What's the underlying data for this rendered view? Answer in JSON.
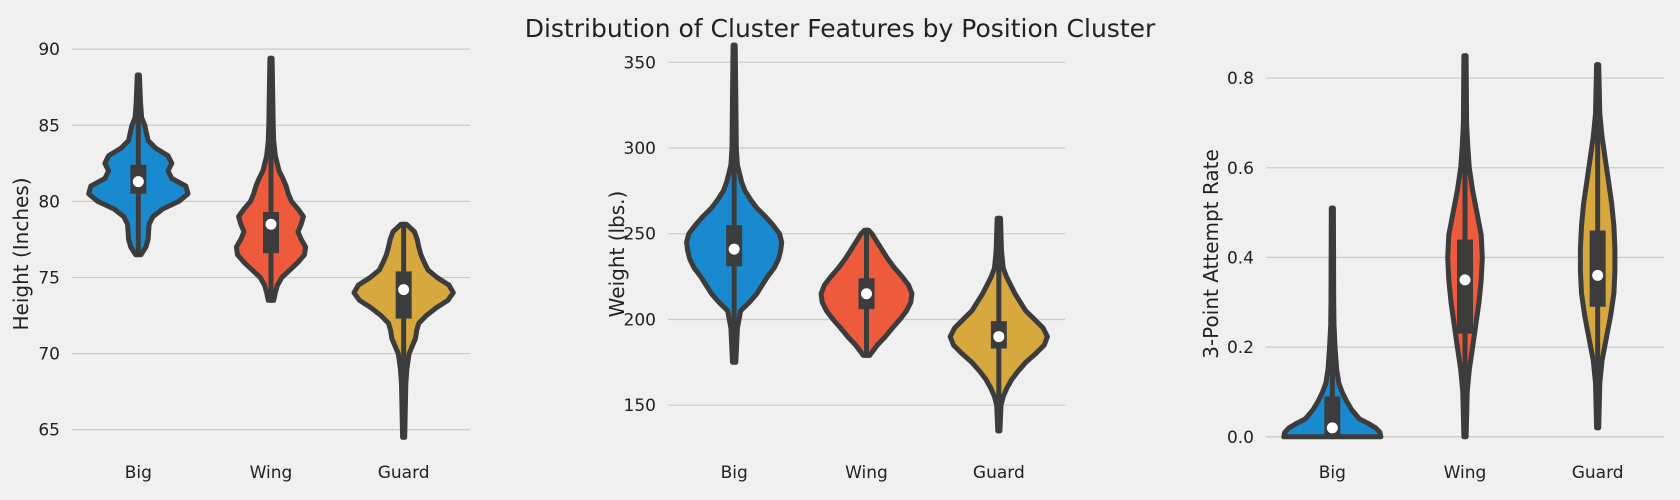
{
  "figure": {
    "title": "Distribution of Cluster Features by Position Cluster",
    "colors": {
      "background": "#f0f0f0",
      "grid": "#cbcbcb",
      "outline": "#3c3c3c",
      "Big": "#1a8ad0",
      "Wing": "#ee5a3c",
      "Guard": "#d7a83e"
    }
  },
  "chart_data": [
    {
      "type": "violin",
      "title": "",
      "xlabel": "",
      "ylabel": "Height (Inches)",
      "categories": [
        "Big",
        "Wing",
        "Guard"
      ],
      "yticks": [
        65,
        70,
        75,
        80,
        85,
        90
      ],
      "ylim": [
        63.8,
        90.6
      ],
      "grid": true,
      "series": [
        {
          "category": "Big",
          "min": 76.5,
          "max": 88.3,
          "q1": 80.5,
          "median": 81.3,
          "q3": 82.4,
          "density": [
            [
              76.5,
              0.05
            ],
            [
              77.0,
              0.14
            ],
            [
              77.5,
              0.18
            ],
            [
              78.0,
              0.19
            ],
            [
              78.5,
              0.2
            ],
            [
              79.0,
              0.27
            ],
            [
              79.5,
              0.45
            ],
            [
              80.0,
              0.75
            ],
            [
              80.5,
              0.92
            ],
            [
              81.0,
              0.88
            ],
            [
              81.5,
              0.62
            ],
            [
              82.0,
              0.55
            ],
            [
              82.5,
              0.62
            ],
            [
              83.0,
              0.55
            ],
            [
              83.5,
              0.32
            ],
            [
              84.0,
              0.18
            ],
            [
              84.5,
              0.15
            ],
            [
              85.0,
              0.12
            ],
            [
              85.5,
              0.06
            ],
            [
              86.5,
              0.04
            ],
            [
              88.3,
              0.02
            ]
          ]
        },
        {
          "category": "Wing",
          "min": 73.5,
          "max": 89.4,
          "q1": 76.6,
          "median": 78.5,
          "q3": 79.3,
          "density": [
            [
              73.5,
              0.05
            ],
            [
              74.0,
              0.08
            ],
            [
              74.5,
              0.12
            ],
            [
              75.0,
              0.2
            ],
            [
              75.5,
              0.35
            ],
            [
              76.0,
              0.5
            ],
            [
              76.5,
              0.62
            ],
            [
              77.0,
              0.64
            ],
            [
              77.5,
              0.56
            ],
            [
              78.0,
              0.5
            ],
            [
              78.5,
              0.56
            ],
            [
              79.0,
              0.6
            ],
            [
              79.5,
              0.5
            ],
            [
              80.0,
              0.38
            ],
            [
              80.5,
              0.32
            ],
            [
              81.0,
              0.28
            ],
            [
              81.5,
              0.22
            ],
            [
              82.0,
              0.15
            ],
            [
              83.0,
              0.08
            ],
            [
              84.0,
              0.05
            ],
            [
              85.0,
              0.04
            ],
            [
              89.4,
              0.02
            ]
          ]
        },
        {
          "category": "Guard",
          "min": 64.5,
          "max": 78.5,
          "q1": 72.3,
          "median": 74.2,
          "q3": 75.4,
          "density": [
            [
              64.5,
              0.02
            ],
            [
              68.0,
              0.04
            ],
            [
              69.0,
              0.06
            ],
            [
              70.0,
              0.1
            ],
            [
              70.5,
              0.16
            ],
            [
              71.0,
              0.22
            ],
            [
              71.5,
              0.24
            ],
            [
              72.0,
              0.28
            ],
            [
              72.5,
              0.42
            ],
            [
              73.0,
              0.6
            ],
            [
              73.5,
              0.82
            ],
            [
              74.0,
              0.92
            ],
            [
              74.5,
              0.84
            ],
            [
              75.0,
              0.62
            ],
            [
              75.5,
              0.45
            ],
            [
              76.0,
              0.38
            ],
            [
              76.5,
              0.32
            ],
            [
              77.0,
              0.28
            ],
            [
              77.5,
              0.25
            ],
            [
              78.0,
              0.2
            ],
            [
              78.5,
              0.05
            ]
          ]
        }
      ]
    },
    {
      "type": "violin",
      "title": "",
      "xlabel": "",
      "ylabel": "Weight (lbs.)",
      "categories": [
        "Big",
        "Wing",
        "Guard"
      ],
      "yticks": [
        150,
        200,
        250,
        300,
        350
      ],
      "ylim": [
        125,
        363
      ],
      "grid": true,
      "series": [
        {
          "category": "Big",
          "min": 175,
          "max": 360,
          "q1": 231,
          "median": 241,
          "q3": 255,
          "density": [
            [
              175,
              0.03
            ],
            [
              195,
              0.06
            ],
            [
              205,
              0.12
            ],
            [
              210,
              0.28
            ],
            [
              215,
              0.42
            ],
            [
              220,
              0.52
            ],
            [
              225,
              0.62
            ],
            [
              230,
              0.74
            ],
            [
              235,
              0.82
            ],
            [
              240,
              0.86
            ],
            [
              245,
              0.88
            ],
            [
              250,
              0.84
            ],
            [
              255,
              0.72
            ],
            [
              260,
              0.58
            ],
            [
              265,
              0.42
            ],
            [
              270,
              0.3
            ],
            [
              275,
              0.2
            ],
            [
              280,
              0.14
            ],
            [
              285,
              0.1
            ],
            [
              290,
              0.06
            ],
            [
              300,
              0.04
            ],
            [
              330,
              0.03
            ],
            [
              360,
              0.02
            ]
          ]
        },
        {
          "category": "Wing",
          "min": 179,
          "max": 252,
          "q1": 206,
          "median": 215,
          "q3": 224,
          "density": [
            [
              179,
              0.06
            ],
            [
              185,
              0.2
            ],
            [
              190,
              0.35
            ],
            [
              195,
              0.48
            ],
            [
              200,
              0.62
            ],
            [
              205,
              0.74
            ],
            [
              210,
              0.82
            ],
            [
              215,
              0.84
            ],
            [
              220,
              0.78
            ],
            [
              225,
              0.66
            ],
            [
              230,
              0.52
            ],
            [
              235,
              0.4
            ],
            [
              240,
              0.3
            ],
            [
              245,
              0.2
            ],
            [
              250,
              0.1
            ],
            [
              252,
              0.04
            ]
          ]
        },
        {
          "category": "Guard",
          "min": 135,
          "max": 259,
          "q1": 183,
          "median": 190,
          "q3": 199,
          "density": [
            [
              135,
              0.02
            ],
            [
              150,
              0.04
            ],
            [
              155,
              0.08
            ],
            [
              160,
              0.15
            ],
            [
              165,
              0.24
            ],
            [
              170,
              0.36
            ],
            [
              175,
              0.5
            ],
            [
              180,
              0.68
            ],
            [
              185,
              0.84
            ],
            [
              190,
              0.9
            ],
            [
              195,
              0.82
            ],
            [
              200,
              0.66
            ],
            [
              205,
              0.5
            ],
            [
              210,
              0.4
            ],
            [
              215,
              0.3
            ],
            [
              220,
              0.22
            ],
            [
              225,
              0.14
            ],
            [
              230,
              0.08
            ],
            [
              240,
              0.05
            ],
            [
              259,
              0.03
            ]
          ]
        }
      ]
    },
    {
      "type": "violin",
      "title": "",
      "xlabel": "",
      "ylabel": "3-Point Attempt Rate",
      "categories": [
        "Big",
        "Wing",
        "Guard"
      ],
      "yticks": [
        0.0,
        0.2,
        0.4,
        0.6,
        0.8
      ],
      "yticklabels": [
        "0.0",
        "0.2",
        "0.4",
        "0.6",
        "0.8"
      ],
      "ylim": [
        -0.025,
        0.885
      ],
      "grid": true,
      "series": [
        {
          "category": "Big",
          "min": 0.0,
          "max": 0.51,
          "q1": 0.0,
          "median": 0.02,
          "q3": 0.09,
          "density": [
            [
              0.0,
              0.9
            ],
            [
              0.01,
              0.88
            ],
            [
              0.02,
              0.8
            ],
            [
              0.03,
              0.66
            ],
            [
              0.04,
              0.5
            ],
            [
              0.06,
              0.36
            ],
            [
              0.08,
              0.26
            ],
            [
              0.1,
              0.18
            ],
            [
              0.12,
              0.12
            ],
            [
              0.15,
              0.08
            ],
            [
              0.2,
              0.05
            ],
            [
              0.25,
              0.03
            ],
            [
              0.3,
              0.025
            ],
            [
              0.51,
              0.02
            ]
          ]
        },
        {
          "category": "Wing",
          "min": 0.0,
          "max": 0.85,
          "q1": 0.23,
          "median": 0.35,
          "q3": 0.44,
          "density": [
            [
              0.0,
              0.02
            ],
            [
              0.1,
              0.04
            ],
            [
              0.15,
              0.08
            ],
            [
              0.2,
              0.14
            ],
            [
              0.25,
              0.2
            ],
            [
              0.3,
              0.26
            ],
            [
              0.35,
              0.3
            ],
            [
              0.4,
              0.32
            ],
            [
              0.45,
              0.3
            ],
            [
              0.5,
              0.22
            ],
            [
              0.55,
              0.14
            ],
            [
              0.6,
              0.08
            ],
            [
              0.65,
              0.05
            ],
            [
              0.7,
              0.03
            ],
            [
              0.85,
              0.02
            ]
          ]
        },
        {
          "category": "Guard",
          "min": 0.02,
          "max": 0.83,
          "q1": 0.29,
          "median": 0.36,
          "q3": 0.46,
          "density": [
            [
              0.02,
              0.02
            ],
            [
              0.12,
              0.04
            ],
            [
              0.17,
              0.08
            ],
            [
              0.22,
              0.16
            ],
            [
              0.27,
              0.24
            ],
            [
              0.32,
              0.3
            ],
            [
              0.37,
              0.32
            ],
            [
              0.42,
              0.32
            ],
            [
              0.47,
              0.3
            ],
            [
              0.52,
              0.26
            ],
            [
              0.57,
              0.2
            ],
            [
              0.62,
              0.14
            ],
            [
              0.67,
              0.08
            ],
            [
              0.72,
              0.04
            ],
            [
              0.83,
              0.02
            ]
          ]
        }
      ]
    }
  ]
}
